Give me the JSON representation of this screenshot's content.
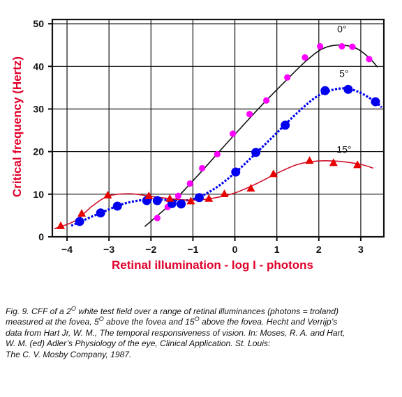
{
  "chart_data": {
    "type": "scatter",
    "title": "",
    "xlabel": "Retinal illumination - log I - photons",
    "ylabel": "Critical frequency (Hertz)",
    "xlim": [
      -4.35,
      3.55
    ],
    "ylim": [
      0,
      51
    ],
    "xticks": [
      -4,
      -3,
      -2,
      -1,
      0,
      1,
      2,
      3
    ],
    "xtick_labels": [
      "−4",
      "−3",
      "−2",
      "−1",
      "0",
      "1",
      "2",
      "3"
    ],
    "yticks": [
      0,
      10,
      20,
      30,
      40,
      50
    ],
    "ytick_labels": [
      "0",
      "10",
      "20",
      "30",
      "40",
      "50"
    ],
    "grid": true,
    "legend": "none",
    "series": [
      {
        "name": "0°",
        "color": "#ff00ff",
        "marker": "circle",
        "line_style": "solid",
        "points": [
          [
            -1.85,
            4.4
          ],
          [
            -1.6,
            7.0
          ],
          [
            -1.35,
            9.6
          ],
          [
            -1.07,
            12.5
          ],
          [
            -0.78,
            16.1
          ],
          [
            -0.42,
            19.4
          ],
          [
            -0.05,
            24.2
          ],
          [
            0.35,
            28.8
          ],
          [
            0.75,
            32.0
          ],
          [
            1.25,
            37.4
          ],
          [
            1.67,
            42.1
          ],
          [
            2.03,
            44.7
          ],
          [
            2.55,
            44.7
          ],
          [
            2.8,
            44.6
          ],
          [
            3.2,
            41.7
          ]
        ],
        "curve": [
          [
            -2.15,
            2.4
          ],
          [
            -1.5,
            8.0
          ],
          [
            -0.9,
            14.2
          ],
          [
            -0.3,
            20.8
          ],
          [
            0.2,
            26.2
          ],
          [
            0.7,
            31.5
          ],
          [
            1.2,
            36.5
          ],
          [
            1.7,
            41.3
          ],
          [
            2.1,
            44.2
          ],
          [
            2.5,
            45.0
          ],
          [
            2.9,
            44.2
          ],
          [
            3.2,
            42.0
          ],
          [
            3.4,
            39.8
          ]
        ]
      },
      {
        "name": "5°",
        "color": "#0000ee",
        "marker": "circle",
        "line_style": "dotted",
        "points": [
          [
            -3.7,
            3.6
          ],
          [
            -3.2,
            5.6
          ],
          [
            -2.8,
            7.2
          ],
          [
            -2.1,
            8.5
          ],
          [
            -1.85,
            8.5
          ],
          [
            -1.5,
            7.8
          ],
          [
            -1.28,
            7.7
          ],
          [
            -0.85,
            9.2
          ],
          [
            0.02,
            15.2
          ],
          [
            0.5,
            19.8
          ],
          [
            1.2,
            26.2
          ],
          [
            2.15,
            34.3
          ],
          [
            2.7,
            34.6
          ],
          [
            3.35,
            31.7
          ]
        ],
        "curve": [
          [
            -3.9,
            2.6
          ],
          [
            -3.2,
            5.6
          ],
          [
            -2.6,
            7.9
          ],
          [
            -2.0,
            8.8
          ],
          [
            -1.5,
            8.6
          ],
          [
            -1.0,
            8.8
          ],
          [
            -0.5,
            11.2
          ],
          [
            0.0,
            15.0
          ],
          [
            0.5,
            19.6
          ],
          [
            1.0,
            24.4
          ],
          [
            1.5,
            29.2
          ],
          [
            2.0,
            33.2
          ],
          [
            2.5,
            34.8
          ],
          [
            2.9,
            34.2
          ],
          [
            3.3,
            32.0
          ],
          [
            3.5,
            30.4
          ]
        ]
      },
      {
        "name": "15°",
        "color": "#e60000",
        "marker": "triangle",
        "line_style": "solid",
        "points": [
          [
            -4.15,
            2.5
          ],
          [
            -3.65,
            5.4
          ],
          [
            -3.03,
            9.7
          ],
          [
            -2.05,
            9.5
          ],
          [
            -1.55,
            8.9
          ],
          [
            -1.05,
            8.3
          ],
          [
            -0.62,
            8.9
          ],
          [
            -0.25,
            10.0
          ],
          [
            0.38,
            11.3
          ],
          [
            0.92,
            14.7
          ],
          [
            1.78,
            17.8
          ],
          [
            2.35,
            17.3
          ],
          [
            2.92,
            16.8
          ]
        ],
        "curve": [
          [
            -4.3,
            1.9
          ],
          [
            -3.8,
            3.8
          ],
          [
            -3.4,
            7.2
          ],
          [
            -3.0,
            9.6
          ],
          [
            -2.5,
            10.1
          ],
          [
            -2.0,
            9.5
          ],
          [
            -1.5,
            8.9
          ],
          [
            -1.0,
            8.6
          ],
          [
            -0.5,
            9.1
          ],
          [
            0.0,
            10.3
          ],
          [
            0.5,
            12.4
          ],
          [
            1.0,
            14.9
          ],
          [
            1.5,
            17.0
          ],
          [
            2.0,
            17.8
          ],
          [
            2.5,
            17.7
          ],
          [
            3.0,
            17.0
          ],
          [
            3.3,
            16.1
          ]
        ]
      }
    ],
    "annotations": [
      {
        "text": "0°",
        "x": 2.55,
        "y": 48.0
      },
      {
        "text": "5°",
        "x": 2.6,
        "y": 37.5
      },
      {
        "text": "15°",
        "x": 2.6,
        "y": 19.7
      }
    ]
  },
  "caption": {
    "lines": [
      [
        "Fig. 9. CFF of a 2",
        "O",
        " white test field over a range of retinal illuminances (photons = troland)"
      ],
      [
        "measured at the fovea, 5",
        "O",
        " above the fovea and 15",
        "O",
        " above the fovea. Hecht and Verrijp’s"
      ],
      [
        "data from Hart Jr, W. M., The temporal responsiveness of vision. In: Moses, R. A. and Hart,"
      ],
      [
        "W. M. (ed) Adler’s Physiology of the eye, Clinical Application. St. Louis:"
      ],
      [
        "The C. V. Mosby Company, 1987."
      ]
    ]
  }
}
